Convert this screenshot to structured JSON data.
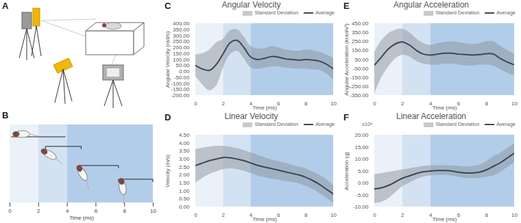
{
  "illustration": {
    "panel": "A"
  },
  "chart_data": [
    {
      "panel": "B",
      "type": "schematic",
      "xlim": [
        0,
        10
      ],
      "xticks": [
        0,
        2,
        4,
        6,
        8,
        10
      ],
      "x_label": "Time (ms)",
      "bands": [
        {
          "x1": 0,
          "x2": 2,
          "color": "#eaf1f9"
        },
        {
          "x1": 2,
          "x2": 4,
          "color": "#d3e2f2"
        },
        {
          "x1": 4,
          "x2": 10,
          "color": "#b2cdea"
        }
      ]
    },
    {
      "panel": "C",
      "type": "line",
      "title": "Angular Velocity",
      "x": [
        0,
        0.5,
        1,
        1.5,
        2,
        2.5,
        3,
        3.5,
        4,
        4.5,
        5,
        5.5,
        6,
        6.5,
        7,
        7.5,
        8,
        8.5,
        9,
        9.5,
        10
      ],
      "xlim": [
        0,
        10
      ],
      "xticks": [
        0,
        2,
        4,
        6,
        8,
        10
      ],
      "x_label": "Time (ms)",
      "ylim": [
        -200,
        400
      ],
      "yticks": [
        {
          "value": -200,
          "label": "-200.00"
        },
        {
          "value": -150,
          "label": "-150.00"
        },
        {
          "value": -100,
          "label": "-100.00"
        },
        {
          "value": -50,
          "label": "-50.00"
        },
        {
          "value": 0,
          "label": "0.00"
        },
        {
          "value": 50,
          "label": "50.00"
        },
        {
          "value": 100,
          "label": "100.00"
        },
        {
          "value": 150,
          "label": "150.00"
        },
        {
          "value": 200,
          "label": "200.00"
        },
        {
          "value": 250,
          "label": "250.00"
        },
        {
          "value": 300,
          "label": "300.00"
        },
        {
          "value": 350,
          "label": "350.00"
        },
        {
          "value": 400,
          "label": "400.00"
        }
      ],
      "y_label": "Angular Velocity (rad/s)",
      "bands": [
        {
          "x1": 0,
          "x2": 2,
          "color": "#eaf1f9"
        },
        {
          "x1": 2,
          "x2": 4,
          "color": "#d3e2f2"
        },
        {
          "x1": 4,
          "x2": 10,
          "color": "#b2cdea"
        }
      ],
      "series": [
        {
          "name": "Standard Deviation",
          "type": "area",
          "color": "#8d939c",
          "lower": [
            -40,
            -110,
            -160,
            -120,
            30,
            140,
            170,
            110,
            30,
            20,
            30,
            40,
            40,
            30,
            25,
            20,
            20,
            15,
            10,
            -20,
            -70
          ],
          "upper": [
            140,
            150,
            180,
            240,
            270,
            340,
            350,
            290,
            210,
            190,
            190,
            210,
            200,
            180,
            175,
            170,
            180,
            175,
            160,
            140,
            110
          ]
        },
        {
          "name": "Average",
          "type": "line",
          "color": "#3a4657",
          "values": [
            50,
            20,
            10,
            60,
            150,
            240,
            260,
            200,
            120,
            100,
            110,
            125,
            120,
            105,
            100,
            95,
            100,
            95,
            85,
            60,
            20
          ]
        }
      ]
    },
    {
      "panel": "D",
      "type": "line",
      "title": "Linear Velocity",
      "x": [
        0,
        0.5,
        1,
        1.5,
        2,
        2.5,
        3,
        3.5,
        4,
        4.5,
        5,
        5.5,
        6,
        6.5,
        7,
        7.5,
        8,
        8.5,
        9,
        9.5,
        10
      ],
      "xlim": [
        0,
        10
      ],
      "xticks": [
        0,
        2,
        4,
        6,
        8,
        10
      ],
      "x_label": "Time (ms)",
      "ylim": [
        0,
        4.5
      ],
      "yticks": [
        {
          "value": 0,
          "label": "0.00"
        },
        {
          "value": 0.5,
          "label": "0.50"
        },
        {
          "value": 1,
          "label": "1.00"
        },
        {
          "value": 1.5,
          "label": "1.50"
        },
        {
          "value": 2,
          "label": "2.00"
        },
        {
          "value": 2.5,
          "label": "2.50"
        },
        {
          "value": 3,
          "label": "3.00"
        },
        {
          "value": 3.5,
          "label": "3.50"
        },
        {
          "value": 4,
          "label": "4.00"
        },
        {
          "value": 4.5,
          "label": "4.50"
        }
      ],
      "y_label": "Velocity (m/s)",
      "bands": [
        {
          "x1": 0,
          "x2": 2,
          "color": "#eaf1f9"
        },
        {
          "x1": 2,
          "x2": 4,
          "color": "#d3e2f2"
        },
        {
          "x1": 4,
          "x2": 10,
          "color": "#b2cdea"
        }
      ],
      "series": [
        {
          "name": "Standard Deviation",
          "type": "area",
          "color": "#8d939c",
          "lower": [
            1.5,
            1.8,
            2.05,
            2.2,
            2.35,
            2.4,
            2.35,
            2.25,
            2.1,
            1.95,
            1.85,
            1.75,
            1.7,
            1.6,
            1.55,
            1.45,
            1.3,
            1.1,
            0.85,
            0.55,
            0.25
          ],
          "upper": [
            3.6,
            3.7,
            3.75,
            3.8,
            3.8,
            3.75,
            3.65,
            3.55,
            3.4,
            3.25,
            3.1,
            2.95,
            2.85,
            2.75,
            2.6,
            2.5,
            2.4,
            2.2,
            2.0,
            1.7,
            1.35
          ]
        },
        {
          "name": "Average",
          "type": "line",
          "color": "#3a4657",
          "values": [
            2.6,
            2.75,
            2.9,
            3.0,
            3.1,
            3.08,
            3.0,
            2.9,
            2.75,
            2.6,
            2.5,
            2.4,
            2.3,
            2.2,
            2.1,
            2.0,
            1.85,
            1.65,
            1.4,
            1.1,
            0.8
          ]
        }
      ]
    },
    {
      "panel": "E",
      "type": "line",
      "title": "Angular Acceleration",
      "x": [
        0,
        0.5,
        1,
        1.5,
        2,
        2.5,
        3,
        3.5,
        4,
        4.5,
        5,
        5.5,
        6,
        6.5,
        7,
        7.5,
        8,
        8.5,
        9,
        9.5,
        10
      ],
      "xlim": [
        0,
        10
      ],
      "xticks": [
        0,
        2,
        4,
        6,
        8,
        10
      ],
      "x_label": "Time (ms)",
      "ylim": [
        -350,
        450
      ],
      "yticks": [
        {
          "value": -350,
          "label": "-350.00"
        },
        {
          "value": -250,
          "label": "-250.00"
        },
        {
          "value": -150,
          "label": "-150.00"
        },
        {
          "value": -50,
          "label": "-50.00"
        },
        {
          "value": 50,
          "label": "50.00"
        },
        {
          "value": 150,
          "label": "150.00"
        },
        {
          "value": 250,
          "label": "250.00"
        },
        {
          "value": 350,
          "label": "350.00"
        },
        {
          "value": 450,
          "label": "450.00"
        }
      ],
      "y_label": "Angular Acceleration (krad/s²)",
      "bands": [
        {
          "x1": 0,
          "x2": 2,
          "color": "#eaf1f9"
        },
        {
          "x1": 2,
          "x2": 4,
          "color": "#d3e2f2"
        },
        {
          "x1": 4,
          "x2": 10,
          "color": "#b2cdea"
        }
      ],
      "series": [
        {
          "name": "Standard Deviation",
          "type": "area",
          "color": "#8d939c",
          "lower": [
            -330,
            -150,
            -30,
            60,
            100,
            80,
            30,
            0,
            -10,
            -10,
            0,
            0,
            -10,
            -20,
            -20,
            -10,
            -10,
            -20,
            -60,
            -100,
            -130
          ],
          "upper": [
            130,
            260,
            340,
            380,
            390,
            350,
            280,
            230,
            210,
            230,
            240,
            250,
            240,
            230,
            220,
            230,
            250,
            250,
            200,
            150,
            110
          ]
        },
        {
          "name": "Average",
          "type": "line",
          "color": "#3a4657",
          "values": [
            -10,
            80,
            170,
            225,
            245,
            210,
            150,
            110,
            100,
            110,
            120,
            120,
            110,
            105,
            100,
            105,
            115,
            110,
            60,
            20,
            -10
          ]
        }
      ]
    },
    {
      "panel": "F",
      "type": "line",
      "title": "Linear Acceleration",
      "annotations": [
        "x10⁴"
      ],
      "x": [
        0,
        0.5,
        1,
        1.5,
        2,
        2.5,
        3,
        3.5,
        4,
        4.5,
        5,
        5.5,
        6,
        6.5,
        7,
        7.5,
        8,
        8.5,
        9,
        9.5,
        10
      ],
      "xlim": [
        0,
        10
      ],
      "xticks": [
        0,
        2,
        4,
        6,
        8,
        10
      ],
      "x_label": "Time (ms)",
      "ylim": [
        -10,
        20
      ],
      "yticks": [
        {
          "value": -10,
          "label": "-10.00"
        },
        {
          "value": -5,
          "label": "-5.00"
        },
        {
          "value": 0,
          "label": "0.00"
        },
        {
          "value": 5,
          "label": "5.00"
        },
        {
          "value": 10,
          "label": "10.00"
        },
        {
          "value": 15,
          "label": "15.00"
        },
        {
          "value": 20,
          "label": "20.00"
        }
      ],
      "y_label": "Acceleration (g)",
      "bands": [
        {
          "x1": 0,
          "x2": 2,
          "color": "#eaf1f9"
        },
        {
          "x1": 2,
          "x2": 4,
          "color": "#d3e2f2"
        },
        {
          "x1": 4,
          "x2": 10,
          "color": "#b2cdea"
        }
      ],
      "series": [
        {
          "name": "Standard Deviation",
          "type": "area",
          "color": "#8d939c",
          "lower": [
            -8.5,
            -8,
            -6.5,
            -4,
            -1.5,
            0,
            1.5,
            2.5,
            3,
            3.2,
            3.3,
            3,
            2.5,
            2,
            2,
            2,
            2.5,
            3,
            4.5,
            6.5,
            8.5
          ],
          "upper": [
            3.5,
            4,
            4.5,
            5,
            5.5,
            6,
            6.5,
            7,
            7.2,
            7.3,
            7.3,
            7.2,
            7,
            6.8,
            7,
            7.5,
            9,
            11,
            12.5,
            14.5,
            16.5
          ]
        },
        {
          "name": "Average",
          "type": "line",
          "color": "#3a4657",
          "values": [
            -2.5,
            -2,
            -1,
            0.5,
            2,
            3,
            4,
            4.7,
            5,
            5.2,
            5.2,
            5,
            4.5,
            4.2,
            4.2,
            4.5,
            5.5,
            7,
            8.5,
            10.5,
            12.5
          ]
        }
      ]
    }
  ]
}
